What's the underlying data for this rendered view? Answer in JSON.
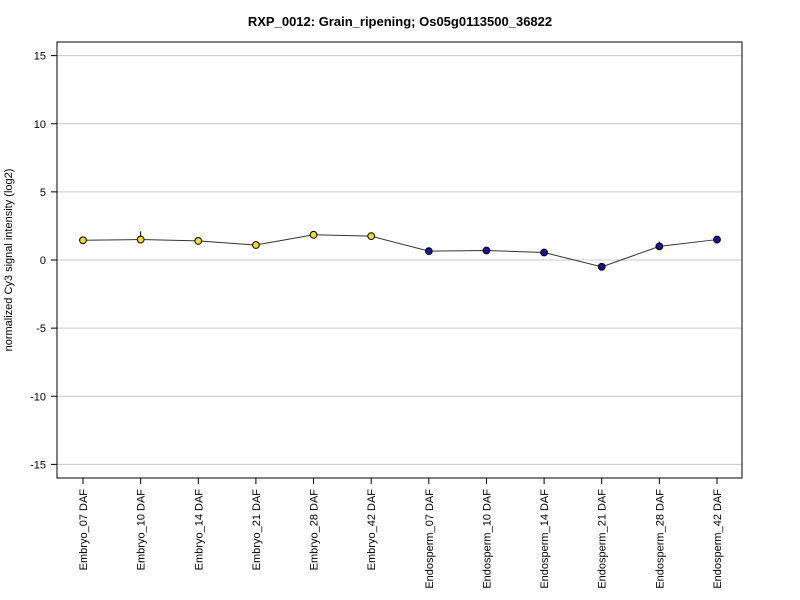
{
  "chart_data": {
    "type": "line",
    "title": "RXP_0012: Grain_ripening; Os05g0113500_36822",
    "xlabel": "",
    "ylabel": "normalized Cy3 signal intensity (log2)",
    "ylim": [
      -16,
      16
    ],
    "y_ticks": [
      "15",
      "10",
      "5",
      "0",
      "-5",
      "-10",
      "-15"
    ],
    "y_tick_values": [
      15,
      10,
      5,
      0,
      -5,
      -10,
      -15
    ],
    "grid": true,
    "categories": [
      "Embryo_07 DAF",
      "Embryo_10 DAF",
      "Embryo_14 DAF",
      "Embryo_21 DAF",
      "Embryo_28 DAF",
      "Embryo_42 DAF",
      "Endosperm_07 DAF",
      "Endosperm_10 DAF",
      "Endosperm_14 DAF",
      "Endosperm_21 DAF",
      "Endosperm_28 DAF",
      "Endosperm_42 DAF"
    ],
    "values": [
      1.45,
      1.5,
      1.4,
      1.1,
      1.85,
      1.75,
      0.65,
      0.7,
      0.55,
      -0.5,
      1.0,
      1.5
    ],
    "error_upper": [
      null,
      2.1,
      null,
      null,
      null,
      null,
      null,
      null,
      null,
      null,
      1.35,
      null
    ],
    "point_colors": [
      "#f2dc1e",
      "#f2dc1e",
      "#f2dc1e",
      "#f2dc1e",
      "#f2dc1e",
      "#f2dc1e",
      "#14149e",
      "#14149e",
      "#14149e",
      "#14149e",
      "#14149e",
      "#14149e"
    ],
    "line_color": "#333333",
    "grid_color": "#c8c8c8"
  }
}
